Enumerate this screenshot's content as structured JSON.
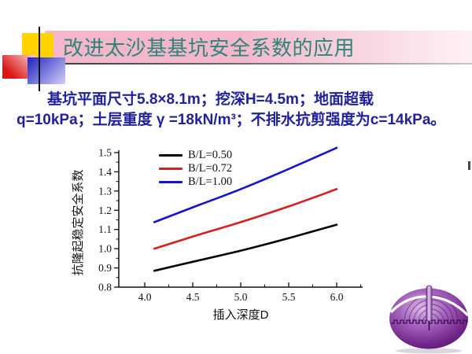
{
  "slide_title": {
    "text": "改进太沙基基坑安全系数的应用"
  },
  "body": {
    "lines": [
      "基坑平面尺寸5.8×8.1m；挖深H=4.5m；地面超载",
      "q=10kPa；土层重度 γ =18kN/m³；不排水抗剪强度为c=14kPa。"
    ]
  },
  "chart_data": {
    "type": "line",
    "title": "",
    "xlabel": "插入深度D",
    "ylabel": "抗隆起稳定安全系数",
    "x": [
      4.1,
      4.5,
      5.0,
      5.5,
      6.0
    ],
    "series": [
      {
        "name": "B/L=0.50",
        "color": "#000000",
        "values": [
          0.885,
          0.932,
          0.99,
          1.055,
          1.125
        ]
      },
      {
        "name": "B/L=0.72",
        "color": "#d81e1e",
        "values": [
          1.0,
          1.063,
          1.138,
          1.22,
          1.31
        ]
      },
      {
        "name": "B/L=1.00",
        "color": "#1414ce",
        "values": [
          1.138,
          1.215,
          1.31,
          1.415,
          1.525
        ]
      }
    ],
    "xlim": [
      3.74,
      6.28
    ],
    "ylim": [
      0.8,
      1.53
    ],
    "x_major_ticks": [
      4.0,
      4.5,
      5.0,
      5.5,
      6.0
    ],
    "x_minor_ticks": [
      4.25,
      4.75,
      5.25,
      5.75,
      6.25
    ],
    "y_major_ticks": [
      0.8,
      0.9,
      1.0,
      1.1,
      1.2,
      1.3,
      1.4,
      1.5
    ],
    "y_minor_ticks": [
      0.85,
      0.95,
      1.05,
      1.15,
      1.25,
      1.35,
      1.45
    ],
    "legend_position": "top-left-inside",
    "grid": false
  },
  "colors": {
    "title-teal": "#2d8578",
    "body-navy": "#21219b",
    "banner-pink": "#f3b6ca",
    "banner-fade": "#fdf1f5",
    "square-yellow": "#ffd200",
    "square-red-dark": "#da1717",
    "square-red-light": "#f9cfcf",
    "square-blue-dark": "#2020c4",
    "square-blue-light": "#d2d2f4",
    "sphere-purple": "#6e2387"
  }
}
